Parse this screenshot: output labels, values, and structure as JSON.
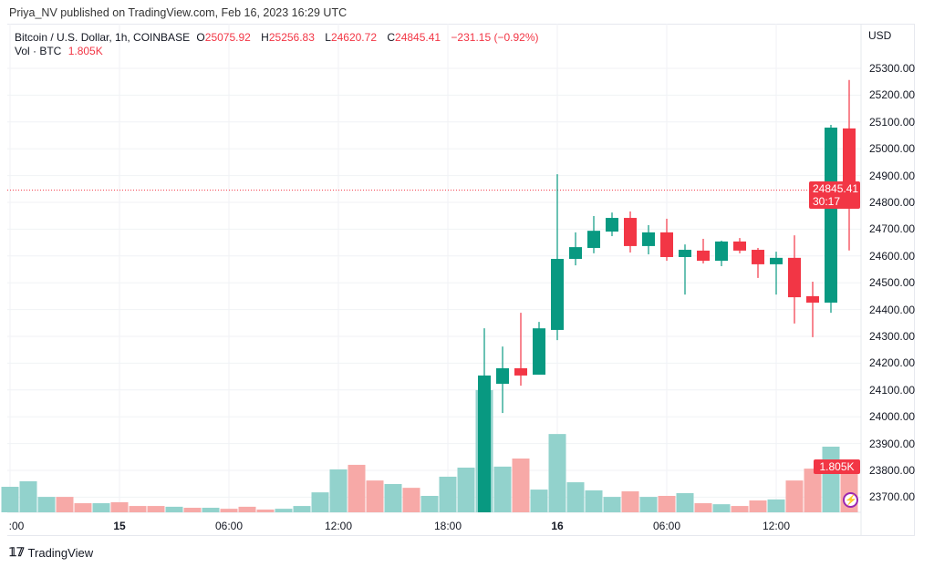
{
  "header": {
    "publisher": "Priya_NV published on TradingView.com, Feb 16, 2023 16:29 UTC"
  },
  "legend": {
    "symbol": "Bitcoin / U.S. Dollar, 1h, COINBASE",
    "o_label": "O",
    "o": "25075.92",
    "h_label": "H",
    "h": "25256.83",
    "l_label": "L",
    "l": "24620.72",
    "c_label": "C",
    "c": "24845.41",
    "change": "−231.15 (−0.92%)",
    "vol_label": "Vol · BTC",
    "vol": "1.805K"
  },
  "axis": {
    "currency": "USD",
    "price_ticks": [
      "25300.00",
      "25200.00",
      "25100.00",
      "25000.00",
      "24900.00",
      "24800.00",
      "24700.00",
      "24600.00",
      "24500.00",
      "24400.00",
      "24300.00",
      "24200.00",
      "24100.00",
      "24000.00",
      "23900.00",
      "23800.00",
      "23700.00"
    ],
    "time_labels": [
      {
        "bar": 0,
        "text": ":00",
        "bold": false
      },
      {
        "bar": 6,
        "text": "15",
        "bold": true
      },
      {
        "bar": 12,
        "text": "06:00",
        "bold": false
      },
      {
        "bar": 18,
        "text": "12:00",
        "bold": false
      },
      {
        "bar": 24,
        "text": "18:00",
        "bold": false
      },
      {
        "bar": 30,
        "text": "16",
        "bold": true
      },
      {
        "bar": 36,
        "text": "06:00",
        "bold": false
      },
      {
        "bar": 42,
        "text": "12:00",
        "bold": false
      }
    ]
  },
  "last_price": {
    "price": "24845.41",
    "countdown": "30:17",
    "volume": "1.805K"
  },
  "colors": {
    "up": "#089981",
    "down": "#f23645",
    "vol_up": "#92d2cc",
    "vol_down": "#f7a9a7"
  },
  "chart_data": {
    "type": "candlestick",
    "price_range": [
      23650,
      25350
    ],
    "volume": [
      1.01,
      1.23,
      0.61,
      0.61,
      0.36,
      0.36,
      0.4,
      0.25,
      0.25,
      0.22,
      0.18,
      0.18,
      0.14,
      0.22,
      0.11,
      0.14,
      0.25,
      0.79,
      1.7,
      1.88,
      1.26,
      1.12,
      0.97,
      0.65,
      1.41,
      1.77,
      4.84,
      1.81,
      2.13,
      0.9,
      3.1,
      1.19,
      0.87,
      0.61,
      0.83,
      0.61,
      0.65,
      0.76,
      0.36,
      0.32,
      0.25,
      0.47,
      0.51,
      1.26,
      1.73,
      2.6,
      1.805
    ],
    "volume_up": [
      1,
      1,
      1,
      0,
      0,
      1,
      0,
      0,
      0,
      1,
      0,
      1,
      0,
      0,
      0,
      1,
      1,
      1,
      1,
      0,
      0,
      1,
      0,
      1,
      1,
      1,
      1,
      1,
      0,
      1,
      1,
      1,
      1,
      1,
      0,
      1,
      0,
      1,
      0,
      1,
      0,
      0,
      1,
      0,
      0,
      1,
      0
    ],
    "candles": [
      {
        "bar": 26,
        "o": 23600,
        "h": 24330,
        "l": 23580,
        "c": 24154
      },
      {
        "bar": 27,
        "o": 24123,
        "h": 24262,
        "l": 24014,
        "c": 24181
      },
      {
        "bar": 28,
        "o": 24181,
        "h": 24388,
        "l": 24116,
        "c": 24154
      },
      {
        "bar": 29,
        "o": 24157,
        "h": 24354,
        "l": 24157,
        "c": 24330
      },
      {
        "bar": 30,
        "o": 24324,
        "h": 24905,
        "l": 24286,
        "c": 24589
      },
      {
        "bar": 31,
        "o": 24589,
        "h": 24688,
        "l": 24565,
        "c": 24633
      },
      {
        "bar": 32,
        "o": 24630,
        "h": 24749,
        "l": 24610,
        "c": 24694
      },
      {
        "bar": 33,
        "o": 24691,
        "h": 24762,
        "l": 24674,
        "c": 24742
      },
      {
        "bar": 34,
        "o": 24742,
        "h": 24766,
        "l": 24613,
        "c": 24637
      },
      {
        "bar": 35,
        "o": 24637,
        "h": 24715,
        "l": 24606,
        "c": 24688
      },
      {
        "bar": 36,
        "o": 24688,
        "h": 24739,
        "l": 24582,
        "c": 24596
      },
      {
        "bar": 37,
        "o": 24596,
        "h": 24643,
        "l": 24456,
        "c": 24623
      },
      {
        "bar": 38,
        "o": 24620,
        "h": 24664,
        "l": 24572,
        "c": 24582
      },
      {
        "bar": 39,
        "o": 24582,
        "h": 24657,
        "l": 24562,
        "c": 24654
      },
      {
        "bar": 40,
        "o": 24654,
        "h": 24667,
        "l": 24610,
        "c": 24620
      },
      {
        "bar": 41,
        "o": 24623,
        "h": 24630,
        "l": 24518,
        "c": 24569
      },
      {
        "bar": 42,
        "o": 24569,
        "h": 24616,
        "l": 24456,
        "c": 24593
      },
      {
        "bar": 43,
        "o": 24593,
        "h": 24677,
        "l": 24348,
        "c": 24446
      },
      {
        "bar": 44,
        "o": 24450,
        "h": 24504,
        "l": 24297,
        "c": 24426
      },
      {
        "bar": 45,
        "o": 24426,
        "h": 25089,
        "l": 24388,
        "c": 25079
      },
      {
        "bar": 46,
        "o": 25075.92,
        "h": 25256.83,
        "l": 24620.72,
        "c": 24845.41
      }
    ]
  },
  "footer": {
    "brand": "TradingView",
    "logo": "TV"
  }
}
